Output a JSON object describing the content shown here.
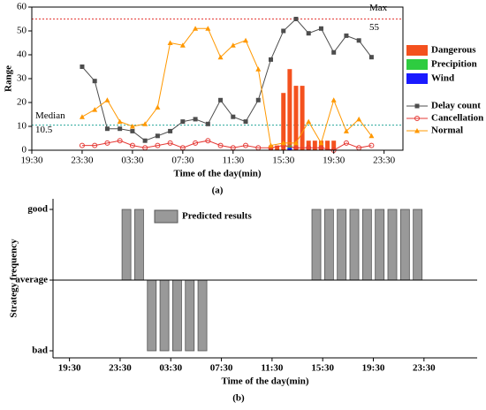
{
  "chart_data": [
    {
      "type": "combo",
      "caption": "(a)",
      "xlabel": "Time of the day(min)",
      "ylabel": "Range",
      "xlim": [
        19.5,
        49
      ],
      "xticks": [
        {
          "value": 19.5,
          "label": "19:30"
        },
        {
          "value": 23.5,
          "label": "23:30"
        },
        {
          "value": 27.5,
          "label": "03:30"
        },
        {
          "value": 31.5,
          "label": "07:30"
        },
        {
          "value": 35.5,
          "label": "11:30"
        },
        {
          "value": 39.5,
          "label": "15:30"
        },
        {
          "value": 43.5,
          "label": "19:30"
        },
        {
          "value": 47.5,
          "label": "23:30"
        }
      ],
      "ylim": [
        0,
        60
      ],
      "yticks": [
        0,
        10,
        20,
        30,
        40,
        50,
        60
      ],
      "reference_lines": [
        {
          "label": "Max",
          "value": 55,
          "color": "#e53935"
        },
        {
          "label": "Median",
          "value": 10.5,
          "color": "#26a69a"
        }
      ],
      "series": [
        {
          "name": "Dangerous",
          "kind": "bar",
          "color": "#f4511e",
          "x": [
            38.5,
            39,
            39.5,
            40,
            40.5,
            41,
            41.5,
            42,
            42.5,
            43,
            43.5
          ],
          "values": [
            2,
            2,
            24,
            34,
            27,
            27,
            4,
            4,
            4,
            4,
            4
          ]
        },
        {
          "name": "Precipition",
          "kind": "bar",
          "color": "#2ecc40",
          "x": [
            40
          ],
          "values": [
            2
          ]
        },
        {
          "name": "Wind",
          "kind": "bar",
          "color": "#1a1aff",
          "x": [
            40
          ],
          "values": [
            1
          ]
        },
        {
          "name": "Delay count",
          "kind": "line",
          "marker": "square",
          "color": "#4d4d4d",
          "x": [
            23.5,
            24.5,
            25.5,
            26.5,
            27.5,
            28.5,
            29.5,
            30.5,
            31.5,
            32.5,
            33.5,
            34.5,
            35.5,
            36.5,
            37.5,
            38.5,
            39.5,
            40.5,
            41.5,
            42.5,
            43.5,
            44.5,
            45.5,
            46.5
          ],
          "values": [
            35,
            29,
            9,
            9,
            8,
            4,
            6,
            8,
            12,
            13,
            11,
            21,
            14,
            12,
            21,
            38,
            50,
            55,
            49,
            51,
            41,
            48,
            46,
            39
          ]
        },
        {
          "name": "Cancellation",
          "kind": "line",
          "marker": "circle",
          "color": "#e53935",
          "x": [
            23.5,
            24.5,
            25.5,
            26.5,
            27.5,
            28.5,
            29.5,
            30.5,
            31.5,
            32.5,
            33.5,
            34.5,
            35.5,
            36.5,
            37.5,
            38.5,
            39.5,
            40.5,
            41.5,
            42.5,
            43.5,
            44.5,
            45.5,
            46.5
          ],
          "values": [
            2,
            2,
            3,
            4,
            2,
            1,
            2,
            3,
            1,
            3,
            4,
            2,
            1,
            2,
            1,
            1,
            2,
            1,
            1,
            1,
            0,
            3,
            1,
            2
          ]
        },
        {
          "name": "Normal",
          "kind": "line",
          "marker": "triangle",
          "color": "#ff9800",
          "x": [
            23.5,
            24.5,
            25.5,
            26.5,
            27.5,
            28.5,
            29.5,
            30.5,
            31.5,
            32.5,
            33.5,
            34.5,
            35.5,
            36.5,
            37.5,
            38.5,
            39.5,
            40.5,
            41.5,
            42.5,
            43.5,
            44.5,
            45.5,
            46.5
          ],
          "values": [
            14,
            17,
            21,
            12,
            10,
            11,
            18,
            45,
            44,
            51,
            51,
            39,
            44,
            46,
            34,
            2,
            3,
            3,
            12,
            3,
            21,
            8,
            13,
            6
          ]
        }
      ]
    },
    {
      "type": "bar",
      "caption": "(b)",
      "xlabel": "Time of the day(min)",
      "ylabel": "Strategy frequency",
      "xlim": [
        18.2,
        51.7
      ],
      "xticks": [
        {
          "value": 19.5,
          "label": "19:30"
        },
        {
          "value": 23.5,
          "label": "23:30"
        },
        {
          "value": 27.5,
          "label": "03:30"
        },
        {
          "value": 31.5,
          "label": "07:30"
        },
        {
          "value": 35.5,
          "label": "11:30"
        },
        {
          "value": 39.5,
          "label": "15:30"
        },
        {
          "value": 43.5,
          "label": "19:30"
        },
        {
          "value": 47.5,
          "label": "23:30"
        }
      ],
      "ylim": [
        -1.1,
        1.15
      ],
      "yticks": [
        {
          "value": 1,
          "label": "good"
        },
        {
          "value": 0,
          "label": "average"
        },
        {
          "value": -1,
          "label": "bad"
        }
      ],
      "series": [
        {
          "name": "Predicted results",
          "kind": "bar",
          "color": "#999999",
          "x": [
            24,
            25,
            26,
            27,
            28,
            29,
            30,
            39,
            40,
            41,
            42,
            43,
            44,
            45,
            46,
            47
          ],
          "values": [
            1,
            1,
            -1,
            -1,
            -1,
            -1,
            -1,
            1,
            1,
            1,
            1,
            1,
            1,
            1,
            1,
            1
          ]
        }
      ]
    }
  ]
}
